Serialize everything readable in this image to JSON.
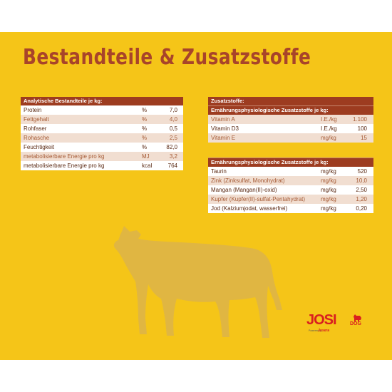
{
  "page": {
    "title": "Bestandteile & Zusatzstoffe"
  },
  "analytics": {
    "header": "Analytische Bestandteile je kg:",
    "rows": [
      {
        "name": "Protein",
        "unit": "%",
        "value": "7,0"
      },
      {
        "name": "Fettgehalt",
        "unit": "%",
        "value": "4,0"
      },
      {
        "name": "Rohfaser",
        "unit": "%",
        "value": "0,5"
      },
      {
        "name": "Rohasche",
        "unit": "%",
        "value": "2,5"
      },
      {
        "name": "Feuchtigkeit",
        "unit": "%",
        "value": "82,0"
      },
      {
        "name": "metabolisierbare Energie pro kg",
        "unit": "MJ",
        "value": "3,2"
      },
      {
        "name": "metabolisierbare Energie pro kg",
        "unit": "kcal",
        "value": "764"
      }
    ]
  },
  "additives": {
    "header": "Zusatzstoffe:",
    "subheader": "Ernährungsphysiologische Zusatzstoffe je kg:",
    "rows": [
      {
        "name": "Vitamin A",
        "unit": "I.E./kg",
        "value": "1.100"
      },
      {
        "name": "Vitamin D3",
        "unit": "I.E./kg",
        "value": "100"
      },
      {
        "name": "Vitamin E",
        "unit": "mg/kg",
        "value": "15"
      }
    ]
  },
  "minerals": {
    "subheader": "Ernährungsphysiologische Zusatzstoffe je kg:",
    "rows": [
      {
        "name": "Taurin",
        "unit": "mg/kg",
        "value": "520"
      },
      {
        "name": "Zink (Zinksulfat, Monohydrat)",
        "unit": "mg/kg",
        "value": "10,0"
      },
      {
        "name": "Mangan (Mangan(II)-oxid)",
        "unit": "mg/kg",
        "value": "2,50"
      },
      {
        "name": "Kupfer (Kupfer(II)-sulfat-Pentahydrat)",
        "unit": "mg/kg",
        "value": "1,20"
      },
      {
        "name": "Jod (Kalziumjodat, wasserfrei)",
        "unit": "mg/kg",
        "value": "0,20"
      }
    ]
  },
  "logo": {
    "name": "JOSI",
    "sub": "DOG",
    "powered": "Powered by",
    "brand": "Josera"
  },
  "colors": {
    "background": "#f5c518",
    "title": "#a8442a",
    "header": "#9d3c20",
    "alt_row": "#f1ded1",
    "logo": "#d91f1f",
    "cow": "#e0b642"
  },
  "icons": {
    "cow": "cow-silhouette-icon",
    "dog": "dog-icon"
  }
}
